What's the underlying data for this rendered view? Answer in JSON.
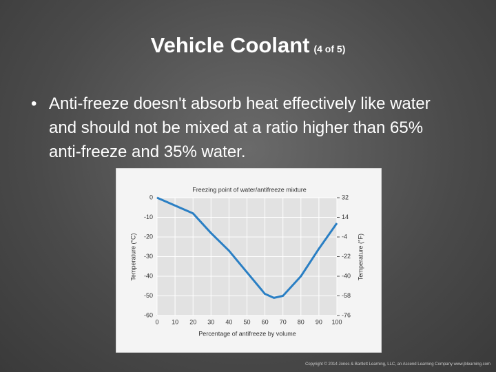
{
  "slide": {
    "title": "Vehicle Coolant",
    "subtitle": "(4 of 5)",
    "bullets": [
      "Anti-freeze doesn't absorb heat effectively like water and should not be mixed at a ratio higher than 65% anti-freeze and 35% water."
    ],
    "copyright": "Copyright © 2014 Jones & Bartlett Learning, LLC, an Ascend Learning Company www.jblearning.com"
  },
  "chart_data": {
    "type": "line",
    "title": "Freezing point of water/antifreeze mixture",
    "x_label": "Percentage of antifreeze by volume",
    "y_label": "Temperature (°C)",
    "y2_label": "Temperature (°F)",
    "x": [
      0,
      10,
      20,
      30,
      40,
      50,
      60,
      65,
      70,
      80,
      90,
      100
    ],
    "series": [
      {
        "name": "Freezing point",
        "color": "#2a7fc4",
        "values": [
          0,
          -4,
          -8,
          -18,
          -27,
          -38,
          -49,
          -51,
          -50,
          -40,
          -26,
          -13
        ]
      }
    ],
    "xlim": [
      0,
      100
    ],
    "xticks": [
      0,
      10,
      20,
      30,
      40,
      50,
      60,
      70,
      80,
      90,
      100
    ],
    "ylim": [
      -60,
      0
    ],
    "yticks": [
      0,
      -10,
      -20,
      -30,
      -40,
      -50,
      -60
    ],
    "y2lim": [
      -76,
      32
    ],
    "y2ticks": [
      32,
      14,
      -4,
      -22,
      -40,
      -58,
      -76
    ],
    "grid": true
  }
}
